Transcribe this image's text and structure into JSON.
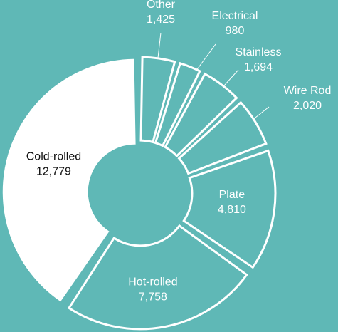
{
  "colors": {
    "background": "#5fb8b6",
    "outline": "#ffffff",
    "highlight_fill": "#ffffff",
    "light_text": "#ffffff",
    "dark_text": "#111111"
  },
  "chart_data": {
    "type": "pie",
    "style": "donut, exploded segments",
    "categories": [
      "Cold-rolled",
      "Other",
      "Electrical",
      "Stainless",
      "Wire Rod",
      "Plate",
      "Hot-rolled"
    ],
    "values": [
      12779,
      1425,
      980,
      1694,
      2020,
      4810,
      7758
    ],
    "labels": [
      {
        "name": "Cold-rolled",
        "value": "12,779"
      },
      {
        "name": "Other",
        "value": "1,425"
      },
      {
        "name": "Electrical",
        "value": "980"
      },
      {
        "name": "Stainless",
        "value": "1,694"
      },
      {
        "name": "Wire Rod",
        "value": "2,020"
      },
      {
        "name": "Plate",
        "value": "4,810"
      },
      {
        "name": "Hot-rolled",
        "value": "7,758"
      }
    ],
    "highlighted": "Cold-rolled",
    "title": ""
  }
}
